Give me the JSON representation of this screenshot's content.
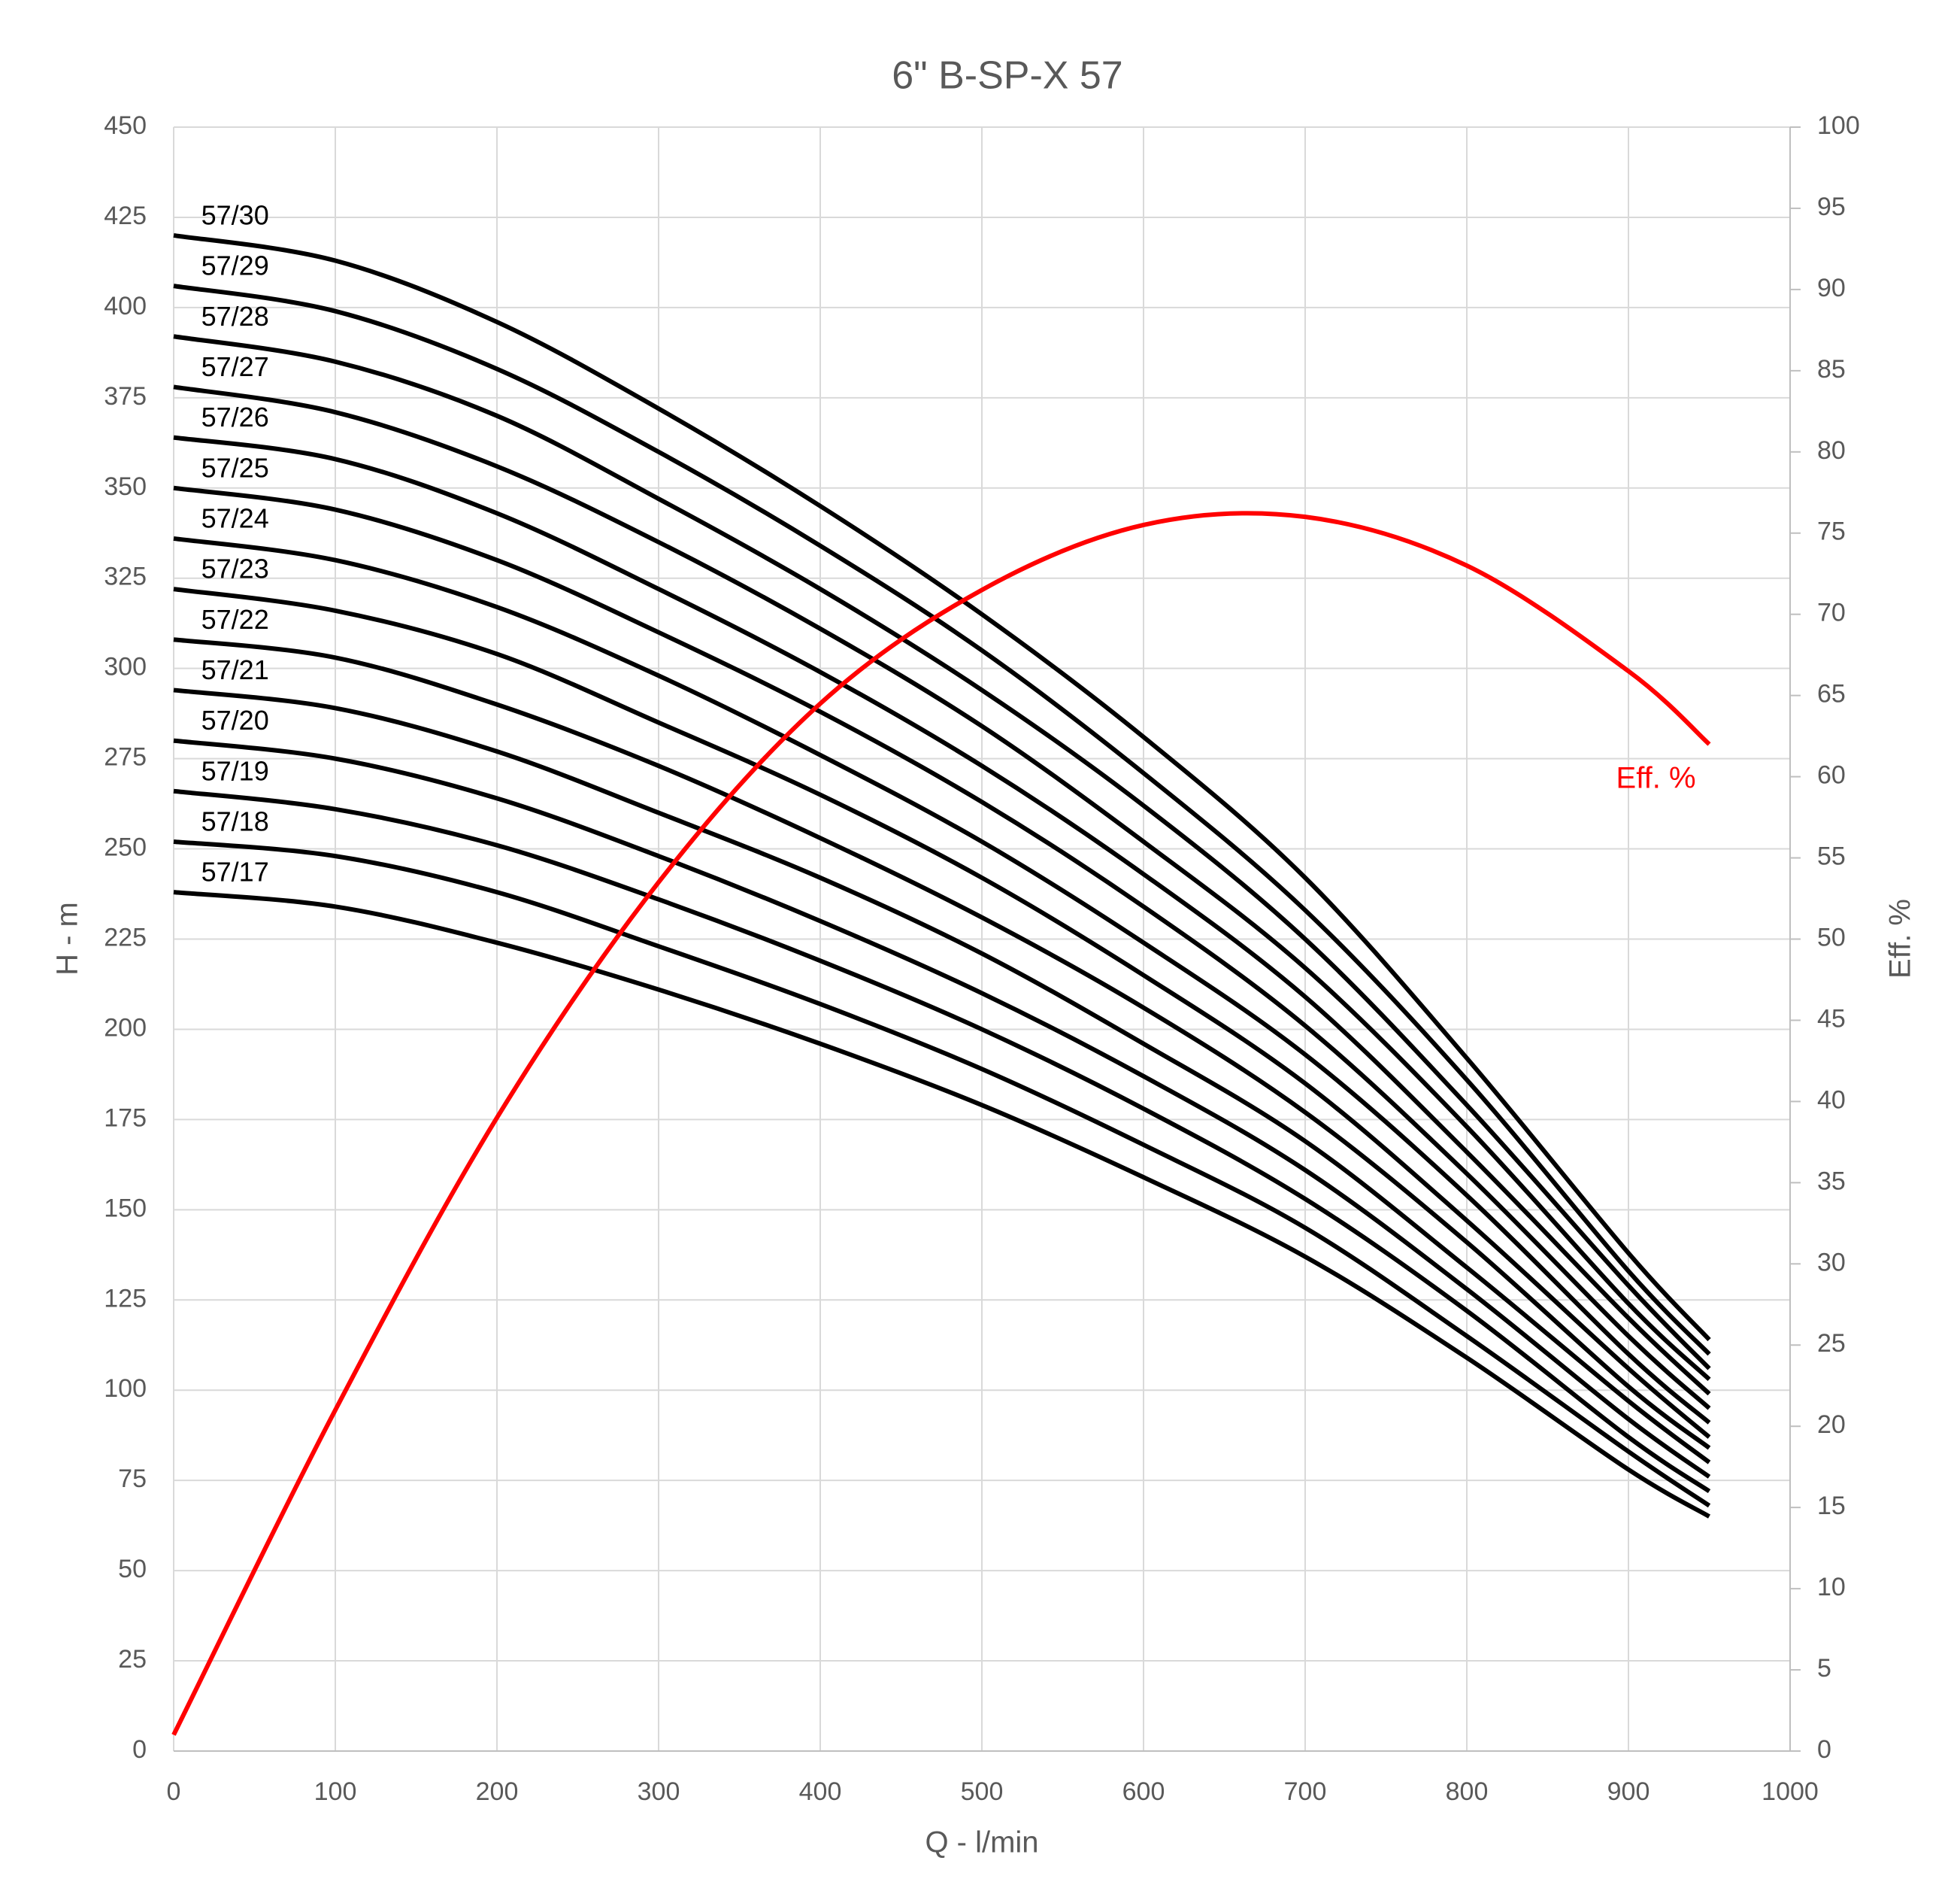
{
  "chart_data": {
    "type": "line",
    "title": "6\" B-SP-X 57",
    "x_label": "Q - l/min",
    "y_label": "H - m",
    "y2_label": "Eff. %",
    "x": [
      0,
      100,
      200,
      300,
      400,
      500,
      600,
      700,
      800,
      900,
      950
    ],
    "xlim": [
      0,
      1000
    ],
    "xticks": [
      0,
      100,
      200,
      300,
      400,
      500,
      600,
      700,
      800,
      900,
      1000
    ],
    "ylim": [
      0,
      450
    ],
    "yticks": [
      0,
      25,
      50,
      75,
      100,
      125,
      150,
      175,
      200,
      225,
      250,
      275,
      300,
      325,
      350,
      375,
      400,
      425,
      450
    ],
    "y2lim": [
      0,
      100
    ],
    "y2ticks": [
      0,
      5,
      10,
      15,
      20,
      25,
      30,
      35,
      40,
      45,
      50,
      55,
      60,
      65,
      70,
      75,
      80,
      85,
      90,
      95,
      100
    ],
    "grid": true,
    "series": [
      {
        "name": "57/30",
        "color": "#000000",
        "values": [
          420,
          413,
          396,
          372,
          345,
          315,
          281,
          242,
          192,
          138,
          114
        ]
      },
      {
        "name": "57/29",
        "color": "#000000",
        "values": [
          406,
          399,
          383,
          360,
          334,
          305,
          271,
          233,
          186,
          133,
          110
        ]
      },
      {
        "name": "57/28",
        "color": "#000000",
        "values": [
          392,
          385,
          370,
          347,
          322,
          294,
          262,
          225,
          179,
          129,
          106
        ]
      },
      {
        "name": "57/27",
        "color": "#000000",
        "values": [
          378,
          371,
          356,
          335,
          311,
          284,
          252,
          217,
          173,
          124,
          103
        ]
      },
      {
        "name": "57/26",
        "color": "#000000",
        "values": [
          364,
          358,
          343,
          322,
          299,
          273,
          243,
          209,
          166,
          120,
          99
        ]
      },
      {
        "name": "57/25",
        "color": "#000000",
        "values": [
          350,
          344,
          330,
          310,
          288,
          263,
          234,
          201,
          160,
          115,
          95
        ]
      },
      {
        "name": "57/24",
        "color": "#000000",
        "values": [
          336,
          330,
          317,
          298,
          276,
          252,
          224,
          193,
          154,
          110,
          91
        ]
      },
      {
        "name": "57/23",
        "color": "#000000",
        "values": [
          322,
          316,
          304,
          285,
          265,
          242,
          215,
          185,
          147,
          106,
          87
        ]
      },
      {
        "name": "57/22",
        "color": "#000000",
        "values": [
          308,
          303,
          290,
          273,
          253,
          231,
          206,
          177,
          141,
          101,
          84
        ]
      },
      {
        "name": "57/21",
        "color": "#000000",
        "values": [
          294,
          289,
          277,
          260,
          242,
          221,
          196,
          169,
          134,
          97,
          80
        ]
      },
      {
        "name": "57/20",
        "color": "#000000",
        "values": [
          280,
          275,
          264,
          248,
          230,
          210,
          187,
          161,
          128,
          92,
          76
        ]
      },
      {
        "name": "57/19",
        "color": "#000000",
        "values": [
          266,
          261,
          251,
          236,
          219,
          200,
          178,
          153,
          122,
          87,
          72
        ]
      },
      {
        "name": "57/18",
        "color": "#000000",
        "values": [
          252,
          248,
          238,
          223,
          207,
          189,
          168,
          145,
          115,
          83,
          68
        ]
      },
      {
        "name": "57/17",
        "color": "#000000",
        "values": [
          238,
          234,
          224,
          211,
          196,
          179,
          159,
          137,
          109,
          78,
          65
        ]
      },
      {
        "name": "Eff. %",
        "color": "#ff0000",
        "axis": "y2",
        "values": [
          1,
          21,
          39,
          53.5,
          64.5,
          71.5,
          75.5,
          76,
          73,
          66.5,
          62
        ]
      }
    ]
  }
}
